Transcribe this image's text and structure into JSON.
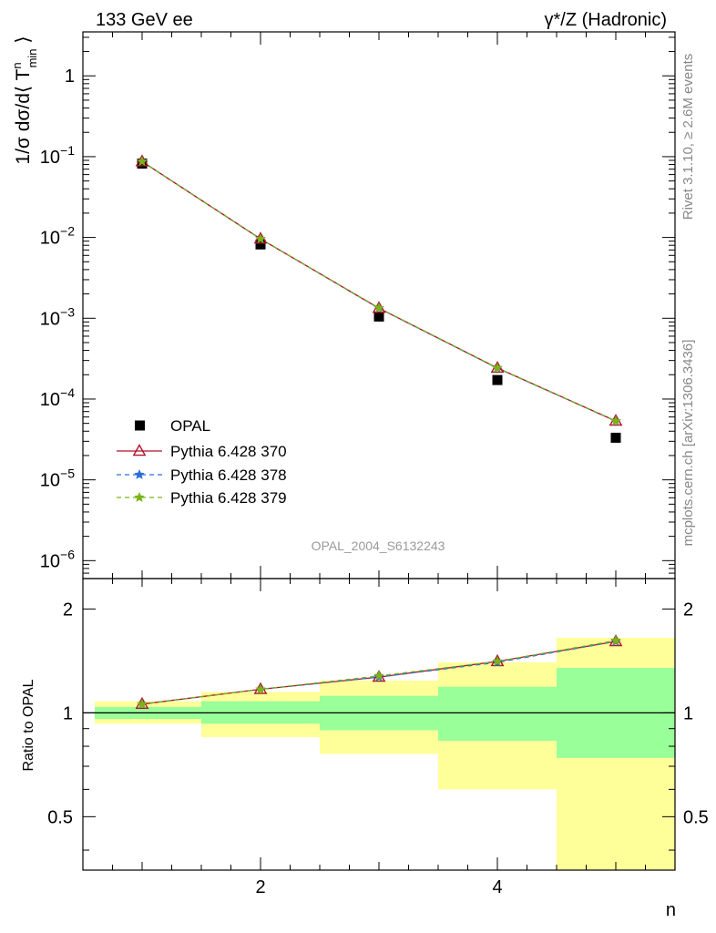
{
  "header": {
    "left_title": "133 GeV ee",
    "right_title": "γ*/Z (Hadronic)",
    "side_rivet": "Rivet 3.1.10, ≥ 2.6M events",
    "side_mcplots": "mcplots.cern.ch [arXiv:1306.3436]",
    "analysis_id": "OPAL_2004_S6132243"
  },
  "colors": {
    "data": "#000000",
    "p370": "#b0102a",
    "p378": "#2a6fd6",
    "p379": "#7ab317",
    "band_inner": "#99ff99",
    "band_outer": "#ffff99"
  },
  "chart_data": [
    {
      "type": "scatter",
      "title": "",
      "xlabel": "n",
      "ylabel": "1/σ dσ/d⟨ Tⁿmin ⟩",
      "ylabel_parts": {
        "pre": "1/σ dσ/d⟨ T",
        "sup": "n",
        "sub": "min",
        "post": " ⟩"
      },
      "yscale": "log",
      "xlim": [
        0.5,
        5.5
      ],
      "ylim": [
        6e-07,
        3.5
      ],
      "ytick_labels": [
        {
          "value": 1,
          "base": "1",
          "exp": ""
        },
        {
          "value": 0.1,
          "base": "10",
          "exp": "−1"
        },
        {
          "value": 0.01,
          "base": "10",
          "exp": "−2"
        },
        {
          "value": 0.001,
          "base": "10",
          "exp": "−3"
        },
        {
          "value": 0.0001,
          "base": "10",
          "exp": "−4"
        },
        {
          "value": 1e-05,
          "base": "10",
          "exp": "−5"
        },
        {
          "value": 1e-06,
          "base": "10",
          "exp": "−6"
        }
      ],
      "legend_position": "bottom-left",
      "x": [
        1,
        2,
        3,
        4,
        5
      ],
      "series": [
        {
          "name": "OPAL",
          "marker": "square",
          "values": [
            0.082,
            0.0082,
            0.00105,
            0.000172,
            3.32e-05
          ]
        },
        {
          "name": "Pythia 6.428 370",
          "marker": "triangle",
          "line": "solid",
          "values": [
            0.087,
            0.0096,
            0.00133,
            0.000242,
            5.35e-05
          ]
        },
        {
          "name": "Pythia 6.428 378",
          "marker": "star",
          "line": "dashed",
          "values": [
            0.087,
            0.0096,
            0.00133,
            0.000241,
            5.33e-05
          ]
        },
        {
          "name": "Pythia 6.428 379",
          "marker": "star",
          "line": "dashed",
          "values": [
            0.087,
            0.0096,
            0.00134,
            0.000243,
            5.36e-05
          ]
        }
      ]
    },
    {
      "type": "line",
      "title": "",
      "xlabel": "n",
      "ylabel": "Ratio to OPAL",
      "yscale": "log",
      "xlim": [
        0.5,
        5.5
      ],
      "ylim": [
        0.35,
        2.45
      ],
      "ytick_labels": [
        {
          "value": 0.5,
          "label": "0.5"
        },
        {
          "value": 1,
          "label": "1"
        },
        {
          "value": 2,
          "label": "2"
        }
      ],
      "xtick_labels": [
        {
          "value": 2,
          "label": "2"
        },
        {
          "value": 4,
          "label": "4"
        }
      ],
      "uncertainty_bands": [
        {
          "x_lo": 0.6,
          "x_hi": 1.5,
          "inner": [
            0.96,
            1.04
          ],
          "outer": [
            0.93,
            1.08
          ]
        },
        {
          "x_lo": 1.5,
          "x_hi": 2.5,
          "inner": [
            0.93,
            1.08
          ],
          "outer": [
            0.85,
            1.15
          ]
        },
        {
          "x_lo": 2.5,
          "x_hi": 3.5,
          "inner": [
            0.89,
            1.12
          ],
          "outer": [
            0.76,
            1.24
          ]
        },
        {
          "x_lo": 3.5,
          "x_hi": 4.5,
          "inner": [
            0.83,
            1.19
          ],
          "outer": [
            0.6,
            1.4
          ]
        },
        {
          "x_lo": 4.5,
          "x_hi": 5.5,
          "inner": [
            0.74,
            1.35
          ],
          "outer": [
            0.35,
            1.65
          ]
        }
      ],
      "x": [
        1,
        2,
        3,
        4,
        5
      ],
      "series": [
        {
          "name": "Pythia 6.428 370",
          "marker": "triangle",
          "values": [
            1.06,
            1.17,
            1.27,
            1.41,
            1.61
          ]
        },
        {
          "name": "Pythia 6.428 378",
          "marker": "star",
          "values": [
            1.06,
            1.17,
            1.27,
            1.4,
            1.61
          ]
        },
        {
          "name": "Pythia 6.428 379",
          "marker": "star",
          "values": [
            1.06,
            1.17,
            1.28,
            1.41,
            1.62
          ]
        }
      ]
    }
  ]
}
